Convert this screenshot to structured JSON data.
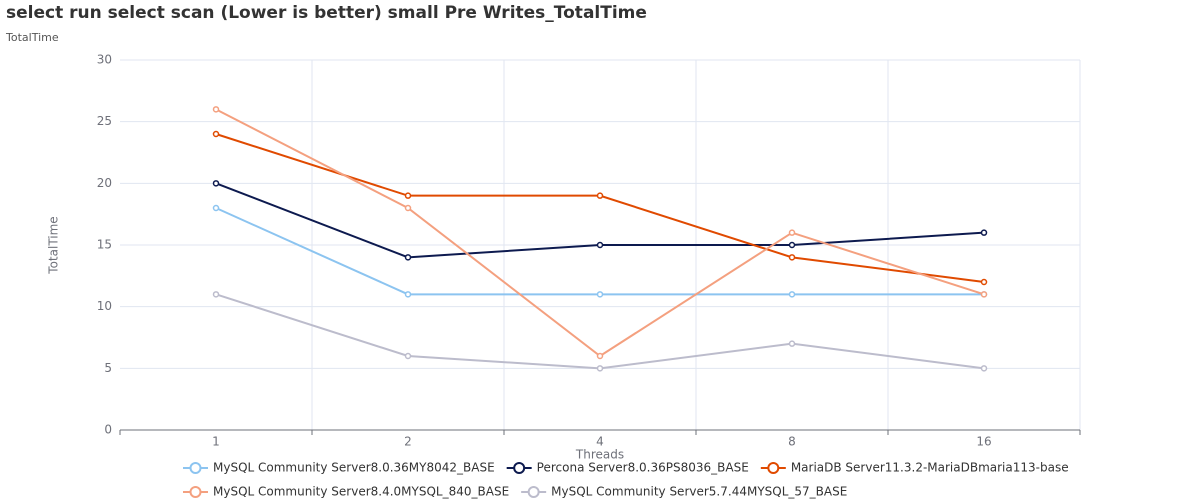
{
  "chart_data": {
    "type": "line",
    "title": "select run select scan (Lower is better)  small Pre Writes_TotalTime",
    "subtitle": "TotalTime",
    "x_label": "Threads",
    "y_label": "TotalTime",
    "categories": [
      "1",
      "2",
      "4",
      "8",
      "16"
    ],
    "series": [
      {
        "name": "MySQL Community Server8.0.36MY8042_BASE",
        "color": "#8cc4f0",
        "values": [
          18,
          11,
          11,
          11,
          11
        ]
      },
      {
        "name": "Percona Server8.0.36PS8036_BASE",
        "color": "#0d1a4f",
        "values": [
          20,
          14,
          15,
          15,
          16
        ]
      },
      {
        "name": "MariaDB Server11.3.2-MariaDBmaria113-base",
        "color": "#e04a00",
        "values": [
          24,
          19,
          19,
          14,
          12
        ]
      },
      {
        "name": "MySQL Community Server8.4.0MYSQL_840_BASE",
        "color": "#f4a07f",
        "values": [
          26,
          18,
          6,
          16,
          11
        ]
      },
      {
        "name": "MySQL Community Server5.7.44MYSQL_57_BASE",
        "color": "#bcbccc",
        "values": [
          11,
          6,
          5,
          7,
          5
        ]
      }
    ],
    "ylim": [
      0,
      30
    ],
    "yticks": [
      0,
      5,
      10,
      15,
      20,
      25,
      30
    ],
    "grid": true,
    "legend": "bottom"
  }
}
